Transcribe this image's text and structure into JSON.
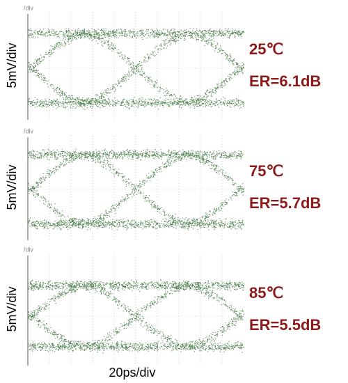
{
  "panels": [
    {
      "div_mark": "/div",
      "y_scale": "5mV/div",
      "temperature": "25℃",
      "extinction_ratio": "ER=6.1dB"
    },
    {
      "div_mark": "/div",
      "y_scale": "5mV/div",
      "temperature": "75℃",
      "extinction_ratio": "ER=5.7dB"
    },
    {
      "div_mark": "/div",
      "y_scale": "5mV/div",
      "temperature": "85℃",
      "extinction_ratio": "ER=5.5dB"
    }
  ],
  "x_scale": "20ps/div"
}
